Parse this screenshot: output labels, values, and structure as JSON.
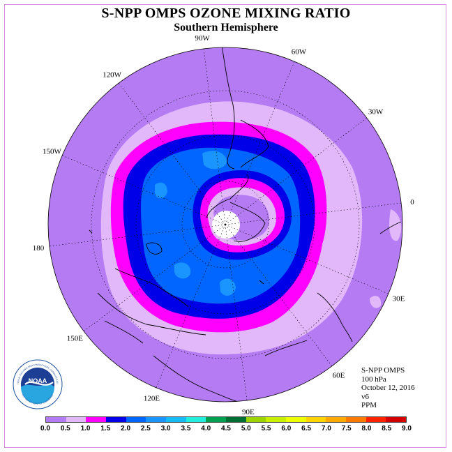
{
  "title": "S-NPP OMPS OZONE MIXING RATIO",
  "subtitle": "Southern Hemisphere",
  "longitude_labels": [
    "0",
    "30E",
    "60E",
    "90E",
    "120E",
    "150E",
    "180",
    "150W",
    "120W",
    "90W",
    "60W",
    "30W"
  ],
  "info": {
    "instrument": "S-NPP OMPS",
    "level": "100 hPa",
    "date": "October 12, 2016",
    "version": "v6",
    "units": "PPM"
  },
  "logo": {
    "text": "NOAA",
    "ring_text": "NATIONAL OCEANIC AND ATMOSPHERIC ADMINISTRATION",
    "ring_text_bottom": "U.S. DEPARTMENT OF COMMERCE"
  },
  "colorbar": {
    "labels": [
      "0.0",
      "0.5",
      "1.0",
      "1.5",
      "2.0",
      "2.5",
      "3.0",
      "3.5",
      "4.0",
      "4.5",
      "5.0",
      "5.5",
      "6.0",
      "6.5",
      "7.0",
      "7.5",
      "8.0",
      "8.5",
      "9.0"
    ],
    "colors": [
      "#b47bf3",
      "#e2b8fb",
      "#ff00ff",
      "#0000e8",
      "#0066ff",
      "#1a94ff",
      "#16bbf0",
      "#22eedd",
      "#00a050",
      "#006e32",
      "#9cd400",
      "#c8ee00",
      "#f0ff00",
      "#ffd400",
      "#ffaa00",
      "#ff7a00",
      "#ff2200",
      "#d40000",
      "#8c5a3c"
    ]
  },
  "map_colors": {
    "background": "#b47bf3",
    "level_0_5": "#e2b8fb",
    "level_1_0": "#ff00ff",
    "level_1_5": "#0000e8",
    "level_2_0": "#0066ff",
    "level_2_5": "#1a94ff",
    "pole": "#ffffff"
  }
}
